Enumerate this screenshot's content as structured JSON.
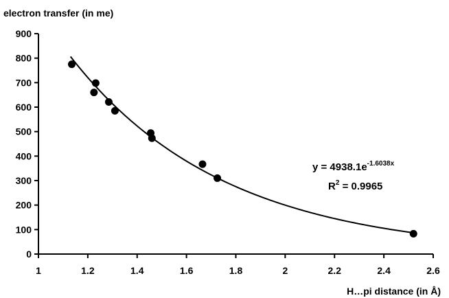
{
  "chart_data": {
    "type": "scatter",
    "ylabel": "electron transfer (in me)",
    "xlabel": "H…pi distance (in Å)",
    "xlim": [
      1,
      2.6
    ],
    "ylim": [
      0,
      900
    ],
    "x_ticks": [
      "1",
      "1.2",
      "1.4",
      "1.6",
      "1.8",
      "2",
      "2.2",
      "2.4",
      "2.6"
    ],
    "y_ticks": [
      "0",
      "100",
      "200",
      "300",
      "400",
      "500",
      "600",
      "700",
      "800",
      "900"
    ],
    "grid": false,
    "legend": "none",
    "points": [
      {
        "x": 1.135,
        "y": 775
      },
      {
        "x": 1.225,
        "y": 660
      },
      {
        "x": 1.232,
        "y": 698
      },
      {
        "x": 1.285,
        "y": 621
      },
      {
        "x": 1.31,
        "y": 585
      },
      {
        "x": 1.455,
        "y": 494
      },
      {
        "x": 1.46,
        "y": 473
      },
      {
        "x": 1.665,
        "y": 367
      },
      {
        "x": 1.725,
        "y": 310
      },
      {
        "x": 2.52,
        "y": 83
      }
    ],
    "trendline": {
      "type": "exponential",
      "a": 4938.1,
      "b": -1.6038,
      "x_range": [
        1.13,
        2.52
      ]
    },
    "equation": {
      "prefix": "y = 4938.1e",
      "exponent": "-1.6038x",
      "r2_prefix": "R",
      "r2_sup": "2",
      "r2_suffix": " = 0.9965"
    }
  }
}
